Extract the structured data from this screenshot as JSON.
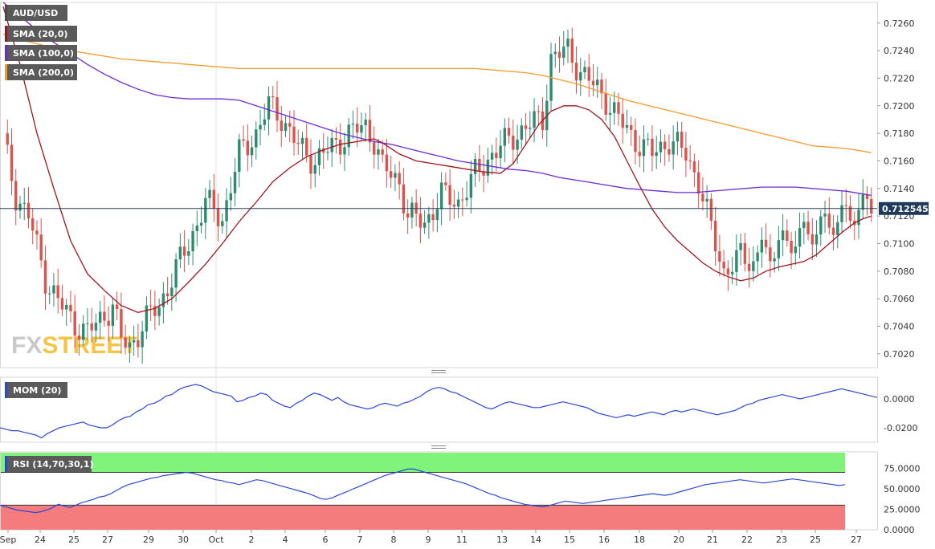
{
  "chart_data": {
    "type": "candlestick",
    "symbol": "AUD/USD",
    "last_price": "0.712545",
    "price_axis": {
      "ylim": [
        0.701,
        0.7275
      ],
      "ticks": [
        "0.7020",
        "0.7040",
        "0.7060",
        "0.7080",
        "0.7100",
        "0.7120",
        "0.7140",
        "0.7160",
        "0.7180",
        "0.7200",
        "0.7220",
        "0.7240",
        "0.7260"
      ]
    },
    "x_tick_labels": [
      "Sep",
      "24",
      "25",
      "27",
      "29",
      "30",
      "Oct",
      "2",
      "4",
      "6",
      "7",
      "8",
      "9",
      "11",
      "13",
      "14",
      "15",
      "16",
      "18",
      "20",
      "21",
      "22",
      "23",
      "25",
      "27"
    ],
    "watermark": "FXSTREET",
    "indicators": [
      {
        "label": "SMA (20,0)",
        "color": "#a0141e"
      },
      {
        "label": "SMA (100,0)",
        "color": "#6a2ad6"
      },
      {
        "label": "SMA (200,0)",
        "color": "#f39a2a"
      }
    ],
    "sma20": [
      [
        0,
        0.7272
      ],
      [
        4,
        0.723
      ],
      [
        8,
        0.718
      ],
      [
        12,
        0.714
      ],
      [
        16,
        0.7102
      ],
      [
        20,
        0.7078
      ],
      [
        24,
        0.7066
      ],
      [
        28,
        0.7055
      ],
      [
        32,
        0.705
      ],
      [
        36,
        0.7053
      ],
      [
        40,
        0.706
      ],
      [
        44,
        0.7072
      ],
      [
        48,
        0.7085
      ],
      [
        52,
        0.71
      ],
      [
        56,
        0.7116
      ],
      [
        60,
        0.713
      ],
      [
        64,
        0.7145
      ],
      [
        68,
        0.7155
      ],
      [
        72,
        0.7163
      ],
      [
        76,
        0.7168
      ],
      [
        80,
        0.7172
      ],
      [
        84,
        0.7174
      ],
      [
        88,
        0.7176
      ],
      [
        90,
        0.7173
      ],
      [
        94,
        0.7165
      ],
      [
        98,
        0.716
      ],
      [
        102,
        0.7158
      ],
      [
        106,
        0.7156
      ],
      [
        110,
        0.7154
      ],
      [
        114,
        0.7152
      ],
      [
        118,
        0.7151
      ],
      [
        121,
        0.7158
      ],
      [
        124,
        0.7172
      ],
      [
        127,
        0.7186
      ],
      [
        130,
        0.7196
      ],
      [
        133,
        0.72
      ],
      [
        136,
        0.72
      ],
      [
        139,
        0.7197
      ],
      [
        142,
        0.719
      ],
      [
        145,
        0.7178
      ],
      [
        148,
        0.716
      ],
      [
        151,
        0.7142
      ],
      [
        154,
        0.7125
      ],
      [
        157,
        0.7112
      ],
      [
        160,
        0.7102
      ],
      [
        163,
        0.7094
      ],
      [
        166,
        0.7086
      ],
      [
        169,
        0.708
      ],
      [
        172,
        0.7076
      ],
      [
        175,
        0.7073
      ],
      [
        178,
        0.7075
      ],
      [
        181,
        0.708
      ],
      [
        184,
        0.7083
      ],
      [
        187,
        0.7085
      ],
      [
        190,
        0.7087
      ],
      [
        193,
        0.7092
      ],
      [
        196,
        0.71
      ],
      [
        199,
        0.7108
      ],
      [
        202,
        0.7115
      ],
      [
        204,
        0.7118
      ],
      [
        206,
        0.712
      ]
    ],
    "sma100": [
      [
        0,
        0.7275
      ],
      [
        4,
        0.7265
      ],
      [
        8,
        0.7255
      ],
      [
        12,
        0.7246
      ],
      [
        16,
        0.7238
      ],
      [
        20,
        0.723
      ],
      [
        24,
        0.7223
      ],
      [
        28,
        0.7217
      ],
      [
        32,
        0.7212
      ],
      [
        36,
        0.7208
      ],
      [
        40,
        0.7206
      ],
      [
        44,
        0.7205
      ],
      [
        48,
        0.7205
      ],
      [
        52,
        0.7205
      ],
      [
        56,
        0.7204
      ],
      [
        60,
        0.72
      ],
      [
        64,
        0.7196
      ],
      [
        68,
        0.7192
      ],
      [
        72,
        0.7188
      ],
      [
        76,
        0.7184
      ],
      [
        80,
        0.718
      ],
      [
        84,
        0.7177
      ],
      [
        88,
        0.7174
      ],
      [
        92,
        0.7172
      ],
      [
        96,
        0.7169
      ],
      [
        100,
        0.7166
      ],
      [
        104,
        0.7163
      ],
      [
        108,
        0.716
      ],
      [
        112,
        0.7158
      ],
      [
        116,
        0.7156
      ],
      [
        120,
        0.7154
      ],
      [
        124,
        0.7153
      ],
      [
        128,
        0.7151
      ],
      [
        132,
        0.7148
      ],
      [
        136,
        0.7146
      ],
      [
        140,
        0.7144
      ],
      [
        144,
        0.7142
      ],
      [
        148,
        0.714
      ],
      [
        152,
        0.7139
      ],
      [
        156,
        0.7138
      ],
      [
        160,
        0.7137
      ],
      [
        164,
        0.7137
      ],
      [
        168,
        0.7138
      ],
      [
        172,
        0.7139
      ],
      [
        176,
        0.714
      ],
      [
        180,
        0.7141
      ],
      [
        184,
        0.7141
      ],
      [
        188,
        0.7141
      ],
      [
        192,
        0.714
      ],
      [
        196,
        0.7139
      ],
      [
        200,
        0.7138
      ],
      [
        204,
        0.7136
      ],
      [
        206,
        0.7135
      ]
    ],
    "sma200": [
      [
        0,
        0.7252
      ],
      [
        4,
        0.7248
      ],
      [
        8,
        0.7245
      ],
      [
        12,
        0.7242
      ],
      [
        16,
        0.724
      ],
      [
        20,
        0.7238
      ],
      [
        24,
        0.7236
      ],
      [
        28,
        0.7234
      ],
      [
        32,
        0.7233
      ],
      [
        36,
        0.7232
      ],
      [
        40,
        0.7231
      ],
      [
        44,
        0.723
      ],
      [
        48,
        0.7229
      ],
      [
        52,
        0.7228
      ],
      [
        56,
        0.7227
      ],
      [
        60,
        0.7227
      ],
      [
        64,
        0.7227
      ],
      [
        68,
        0.7227
      ],
      [
        72,
        0.7227
      ],
      [
        76,
        0.7227
      ],
      [
        80,
        0.7227
      ],
      [
        84,
        0.7227
      ],
      [
        88,
        0.7227
      ],
      [
        92,
        0.7227
      ],
      [
        96,
        0.7227
      ],
      [
        100,
        0.7227
      ],
      [
        104,
        0.7227
      ],
      [
        108,
        0.7227
      ],
      [
        112,
        0.7227
      ],
      [
        116,
        0.7226
      ],
      [
        120,
        0.7225
      ],
      [
        124,
        0.7224
      ],
      [
        128,
        0.7222
      ],
      [
        132,
        0.7219
      ],
      [
        136,
        0.7216
      ],
      [
        140,
        0.7212
      ],
      [
        144,
        0.7208
      ],
      [
        148,
        0.7204
      ],
      [
        152,
        0.7201
      ],
      [
        156,
        0.7198
      ],
      [
        160,
        0.7195
      ],
      [
        164,
        0.7192
      ],
      [
        168,
        0.7189
      ],
      [
        172,
        0.7186
      ],
      [
        176,
        0.7183
      ],
      [
        180,
        0.718
      ],
      [
        184,
        0.7177
      ],
      [
        188,
        0.7174
      ],
      [
        192,
        0.7171
      ],
      [
        196,
        0.717
      ],
      [
        200,
        0.7169
      ],
      [
        204,
        0.7167
      ],
      [
        206,
        0.7166
      ]
    ],
    "mom": {
      "label": "MOM (20)",
      "ticks": [
        "0.0000",
        "-0.0200"
      ],
      "ylim": [
        -0.03,
        0.015
      ],
      "values": [
        -0.02,
        -0.021,
        -0.022,
        -0.022,
        -0.023,
        -0.024,
        -0.025,
        -0.027,
        -0.024,
        -0.022,
        -0.02,
        -0.019,
        -0.018,
        -0.017,
        -0.016,
        -0.018,
        -0.019,
        -0.02,
        -0.02,
        -0.018,
        -0.015,
        -0.013,
        -0.012,
        -0.009,
        -0.007,
        -0.004,
        -0.003,
        -0.001,
        0.002,
        0.003,
        0.006,
        0.008,
        0.009,
        0.01,
        0.009,
        0.007,
        0.005,
        0.004,
        0.003,
        0.002,
        -0.002,
        -0.001,
        0.001,
        0.002,
        0.004,
        0.003,
        -0.001,
        -0.003,
        -0.005,
        -0.006,
        -0.003,
        -0.001,
        0.002,
        0.004,
        0.003,
        0.001,
        -0.001,
        0.001,
        -0.002,
        -0.004,
        -0.005,
        -0.006,
        -0.007,
        -0.006,
        -0.004,
        -0.003,
        -0.004,
        -0.005,
        -0.003,
        -0.002,
        0.0,
        0.002,
        0.005,
        0.007,
        0.008,
        0.007,
        0.005,
        0.004,
        0.002,
        0.0,
        -0.002,
        -0.004,
        -0.006,
        -0.007,
        -0.005,
        -0.003,
        -0.002,
        -0.003,
        -0.004,
        -0.005,
        -0.006,
        -0.006,
        -0.005,
        -0.004,
        -0.003,
        -0.002,
        -0.003,
        -0.004,
        -0.005,
        -0.006,
        -0.008,
        -0.01,
        -0.011,
        -0.012,
        -0.013,
        -0.012,
        -0.011,
        -0.012,
        -0.011,
        -0.01,
        -0.009,
        -0.01,
        -0.011,
        -0.009,
        -0.008,
        -0.009,
        -0.008,
        -0.007,
        -0.008,
        -0.009,
        -0.01,
        -0.011,
        -0.01,
        -0.009,
        -0.008,
        -0.006,
        -0.004,
        -0.003,
        -0.001,
        0.0,
        0.001,
        0.002,
        0.003,
        0.002,
        0.001,
        0.0,
        0.001,
        0.002,
        0.003,
        0.004,
        0.005,
        0.006,
        0.007,
        0.006,
        0.005,
        0.004,
        0.003,
        0.002,
        0.001
      ],
      "color": "#2b47d8"
    },
    "rsi": {
      "label": "RSI (14,70,30,1)",
      "ticks": [
        "75.0000",
        "50.0000",
        "25.0000",
        "0.0000"
      ],
      "ylim": [
        0,
        95
      ],
      "overbought": 70,
      "oversold": 30,
      "values": [
        30,
        28,
        26,
        24,
        23,
        22,
        21,
        22,
        24,
        27,
        31,
        29,
        27,
        30,
        33,
        35,
        37,
        40,
        41,
        44,
        48,
        52,
        55,
        57,
        59,
        61,
        63,
        64,
        66,
        67,
        68,
        69,
        70,
        69,
        67,
        65,
        63,
        61,
        60,
        58,
        57,
        55,
        57,
        59,
        61,
        60,
        58,
        56,
        54,
        52,
        50,
        48,
        46,
        44,
        41,
        38,
        37,
        39,
        42,
        45,
        48,
        51,
        54,
        57,
        60,
        63,
        66,
        68,
        70,
        72,
        74,
        74,
        72,
        70,
        68,
        66,
        64,
        62,
        60,
        58,
        56,
        53,
        50,
        47,
        44,
        42,
        39,
        37,
        35,
        33,
        31,
        30,
        29,
        28,
        29,
        31,
        33,
        35,
        34,
        33,
        32,
        33,
        34,
        35,
        36,
        37,
        38,
        39,
        40,
        41,
        42,
        43,
        44,
        43,
        42,
        43,
        45,
        47,
        49,
        51,
        53,
        55,
        56,
        57,
        58,
        59,
        60,
        61,
        60,
        59,
        58,
        57,
        58,
        59,
        60,
        61,
        62,
        61,
        60,
        59,
        58,
        57,
        56,
        55,
        54,
        55
      ],
      "color": "#2b47d8",
      "overbought_color": "#7ff37a",
      "oversold_color": "#f47c7c"
    }
  }
}
